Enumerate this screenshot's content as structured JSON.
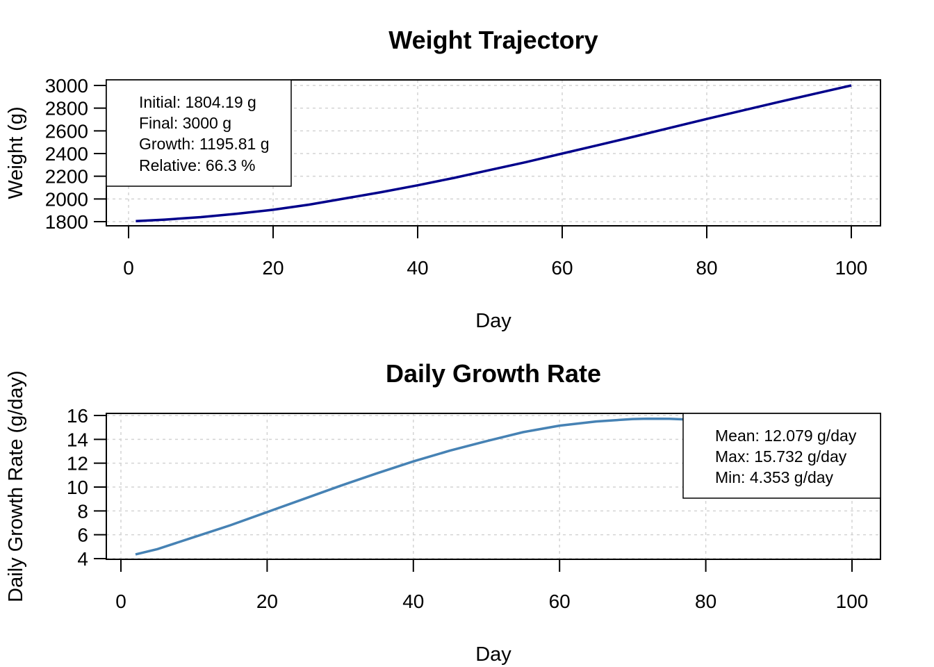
{
  "chart_data": [
    {
      "type": "line",
      "title": "Weight Trajectory",
      "xlabel": "Day",
      "ylabel": "Weight (g)",
      "xlim": [
        1,
        100
      ],
      "ylim": [
        1800,
        3000
      ],
      "x_ticks": [
        0,
        20,
        40,
        60,
        80,
        100
      ],
      "y_ticks": [
        1800,
        2000,
        2200,
        2400,
        2600,
        2800,
        3000
      ],
      "grid": true,
      "line_color": "#00008B",
      "series": [
        {
          "x": [
            1,
            5,
            10,
            15,
            20,
            25,
            30,
            35,
            40,
            45,
            50,
            55,
            60,
            65,
            70,
            75,
            80,
            85,
            90,
            95,
            100
          ],
          "values": [
            1804.19,
            1818,
            1840,
            1870,
            1905,
            1950,
            2005,
            2060,
            2120,
            2185,
            2255,
            2325,
            2400,
            2475,
            2550,
            2628,
            2705,
            2780,
            2855,
            2928,
            3000
          ]
        }
      ],
      "legend": {
        "placement": "top-left",
        "lines": [
          "Initial: 1804.19 g",
          "Final: 3000 g",
          "Growth: 1195.81 g",
          "Relative: 66.3 %"
        ]
      }
    },
    {
      "type": "line",
      "title": "Daily Growth Rate",
      "xlabel": "Day",
      "ylabel": "Daily Growth Rate (g/day)",
      "xlim": [
        2,
        100
      ],
      "ylim": [
        4,
        16
      ],
      "x_ticks": [
        0,
        20,
        40,
        60,
        80,
        100
      ],
      "y_ticks": [
        4,
        6,
        8,
        10,
        12,
        14,
        16
      ],
      "grid": true,
      "line_color": "#4682B4",
      "series": [
        {
          "x": [
            2,
            5,
            10,
            15,
            20,
            25,
            30,
            35,
            40,
            45,
            50,
            55,
            60,
            65,
            70,
            72,
            75,
            80
          ],
          "values": [
            4.353,
            4.8,
            5.8,
            6.8,
            7.9,
            9.0,
            10.1,
            11.15,
            12.15,
            13.05,
            13.85,
            14.6,
            15.15,
            15.5,
            15.7,
            15.732,
            15.72,
            15.6
          ]
        }
      ],
      "legend": {
        "placement": "top-right",
        "lines": [
          "Mean: 12.079 g/day",
          "Max: 15.732 g/day",
          "Min: 4.353 g/day"
        ]
      }
    }
  ]
}
